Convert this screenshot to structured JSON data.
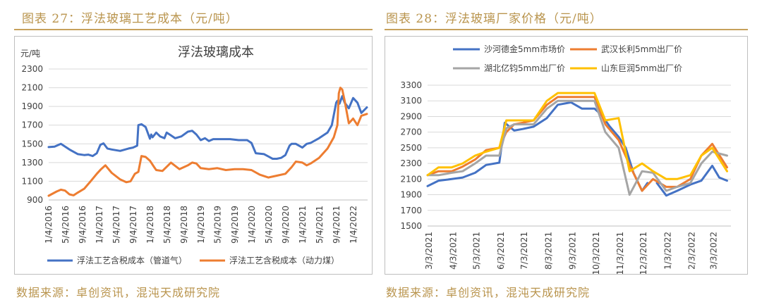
{
  "left": {
    "figure_title": "图表 27：浮法玻璃工艺成本（元/吨）",
    "source": "数据来源：卓创资讯，混沌天成研究院"
  },
  "right": {
    "figure_title": "图表 28：浮法玻璃厂家价格（元/吨）",
    "source": "数据来源：卓创资讯，混沌天成研究院"
  },
  "colors": {
    "gold": "#c6a15b",
    "blue": "#4472c4",
    "orange": "#ed7d31",
    "gray": "#a5a5a5",
    "yellow": "#ffc000"
  },
  "chart_data": [
    {
      "type": "line",
      "title": "浮法玻璃成本",
      "unit_label": "元/吨",
      "ylim": [
        900,
        2300
      ],
      "yticks": [
        900,
        1100,
        1300,
        1500,
        1700,
        1900,
        2100,
        2300
      ],
      "xlim": [
        "2016-01-04",
        "2022-04-15"
      ],
      "xticks": [
        "1/4/2016",
        "5/4/2016",
        "9/4/2016",
        "1/4/2017",
        "5/4/2017",
        "9/4/2017",
        "1/4/2018",
        "5/4/2018",
        "9/4/2018",
        "1/4/2019",
        "5/4/2019",
        "9/4/2019",
        "1/4/2020",
        "5/4/2020",
        "9/4/2020",
        "1/4/2021",
        "5/4/2021",
        "9/4/2021",
        "1/4/2022"
      ],
      "grid": true,
      "legend_position": "bottom",
      "series": [
        {
          "name": "浮法工艺含税成本（管道气）",
          "color": "#4472c4",
          "x": [
            "2016-01-04",
            "2016-02-15",
            "2016-04-01",
            "2016-06-01",
            "2016-08-01",
            "2016-09-15",
            "2016-10-15",
            "2016-11-15",
            "2016-12-15",
            "2017-01-10",
            "2017-02-01",
            "2017-03-01",
            "2017-04-01",
            "2017-06-01",
            "2017-08-01",
            "2017-09-01",
            "2017-10-01",
            "2017-10-10",
            "2017-11-01",
            "2017-12-01",
            "2018-01-01",
            "2018-01-10",
            "2018-01-20",
            "2018-02-15",
            "2018-03-15",
            "2018-04-15",
            "2018-05-01",
            "2018-06-01",
            "2018-07-01",
            "2018-08-15",
            "2018-10-01",
            "2018-11-01",
            "2018-12-01",
            "2019-01-01",
            "2019-02-01",
            "2019-03-01",
            "2019-04-01",
            "2019-05-01",
            "2019-06-01",
            "2019-08-01",
            "2019-10-01",
            "2019-12-01",
            "2020-01-01",
            "2020-02-01",
            "2020-04-01",
            "2020-06-01",
            "2020-07-01",
            "2020-08-01",
            "2020-09-01",
            "2020-10-01",
            "2020-10-15",
            "2020-11-15",
            "2021-01-01",
            "2021-02-01",
            "2021-03-01",
            "2021-05-01",
            "2021-07-01",
            "2021-08-01",
            "2021-09-01",
            "2021-09-10",
            "2021-09-25",
            "2021-10-15",
            "2021-11-01",
            "2021-12-01",
            "2022-01-01",
            "2022-02-01",
            "2022-03-01",
            "2022-04-10"
          ],
          "y": [
            1465,
            1470,
            1500,
            1440,
            1390,
            1380,
            1385,
            1370,
            1400,
            1490,
            1505,
            1450,
            1440,
            1425,
            1450,
            1460,
            1480,
            1700,
            1710,
            1680,
            1555,
            1600,
            1570,
            1620,
            1580,
            1560,
            1620,
            1590,
            1560,
            1580,
            1630,
            1640,
            1600,
            1540,
            1560,
            1530,
            1550,
            1550,
            1550,
            1550,
            1540,
            1540,
            1510,
            1400,
            1390,
            1340,
            1340,
            1350,
            1380,
            1480,
            1500,
            1500,
            1460,
            1500,
            1510,
            1560,
            1620,
            1700,
            1940,
            1960,
            1930,
            2010,
            1940,
            1880,
            1990,
            1940,
            1830,
            1890
          ]
        },
        {
          "name": "浮法工艺含税成本（动力煤）",
          "color": "#ed7d31",
          "x": [
            "2016-01-04",
            "2016-03-01",
            "2016-04-01",
            "2016-05-01",
            "2016-06-01",
            "2016-07-01",
            "2016-08-01",
            "2016-09-15",
            "2016-11-01",
            "2016-12-15",
            "2017-01-15",
            "2017-02-15",
            "2017-04-01",
            "2017-06-01",
            "2017-07-15",
            "2017-08-15",
            "2017-09-15",
            "2017-10-10",
            "2017-11-01",
            "2017-12-01",
            "2018-01-01",
            "2018-02-01",
            "2018-02-15",
            "2018-04-01",
            "2018-06-01",
            "2018-08-01",
            "2018-10-01",
            "2018-11-01",
            "2018-12-01",
            "2019-01-01",
            "2019-03-01",
            "2019-05-01",
            "2019-07-01",
            "2019-09-01",
            "2019-11-01",
            "2020-01-01",
            "2020-03-01",
            "2020-05-01",
            "2020-07-01",
            "2020-09-01",
            "2020-10-15",
            "2020-11-15",
            "2021-01-01",
            "2021-02-01",
            "2021-03-01",
            "2021-05-01",
            "2021-07-01",
            "2021-08-15",
            "2021-09-10",
            "2021-09-20",
            "2021-10-01",
            "2021-10-15",
            "2021-11-01",
            "2021-12-01",
            "2022-01-01",
            "2022-02-01",
            "2022-03-01",
            "2022-04-10"
          ],
          "y": [
            945,
            990,
            1010,
            1000,
            960,
            950,
            980,
            1020,
            1100,
            1180,
            1230,
            1270,
            1190,
            1120,
            1090,
            1100,
            1180,
            1200,
            1370,
            1360,
            1320,
            1250,
            1220,
            1210,
            1300,
            1230,
            1270,
            1300,
            1290,
            1240,
            1230,
            1240,
            1220,
            1230,
            1230,
            1220,
            1170,
            1140,
            1160,
            1180,
            1250,
            1310,
            1300,
            1270,
            1290,
            1350,
            1450,
            1570,
            1700,
            2040,
            2100,
            2080,
            1960,
            1720,
            1770,
            1700,
            1800,
            1820
          ]
        }
      ]
    },
    {
      "type": "line",
      "title": "",
      "ylim": [
        1500,
        3300
      ],
      "yticks": [
        1500,
        1700,
        1900,
        2100,
        2300,
        2500,
        2700,
        2900,
        3100,
        3300
      ],
      "xlim": [
        "2021-03-01",
        "2022-03-25"
      ],
      "xticks": [
        "3/3/2021",
        "4/3/2021",
        "5/3/2021",
        "6/3/2021",
        "7/3/2021",
        "8/3/2021",
        "9/3/2021",
        "10/3/2021",
        "11/3/2021",
        "12/3/2021",
        "1/3/2022",
        "2/3/2022",
        "3/3/2022"
      ],
      "grid": true,
      "legend_position": "top",
      "series": [
        {
          "name": "沙河德金5mm市场价",
          "color": "#4472c4",
          "x": [
            "2021-03-01",
            "2021-03-15",
            "2021-04-01",
            "2021-04-15",
            "2021-05-01",
            "2021-05-15",
            "2021-06-01",
            "2021-06-08",
            "2021-06-20",
            "2021-07-01",
            "2021-07-15",
            "2021-08-01",
            "2021-08-15",
            "2021-09-01",
            "2021-09-15",
            "2021-10-01",
            "2021-10-10",
            "2021-10-20",
            "2021-11-01",
            "2021-11-10",
            "2021-11-20",
            "2021-12-01",
            "2021-12-08"
          ],
          "y": [
            2010,
            2080,
            2100,
            2120,
            2180,
            2280,
            2310,
            2820,
            2720,
            2740,
            2770,
            2880,
            3050,
            3080,
            3000,
            3000,
            2920,
            2780,
            2640,
            2500,
            2180,
            1950,
            2050
          ]
        },
        {
          "name": "沙河德金5mm市场价",
          "color": "#4472c4",
          "x": [
            "2021-12-20",
            "2022-01-01",
            "2022-01-15",
            "2022-02-01",
            "2022-02-15",
            "2022-03-01",
            "2022-03-10",
            "2022-03-20"
          ],
          "y": [
            2050,
            1890,
            1950,
            2030,
            2080,
            2270,
            2120,
            2080
          ]
        },
        {
          "name": "武汉长利5mm出厂价",
          "color": "#ed7d31",
          "x": [
            "2021-03-01",
            "2021-03-15",
            "2021-04-01",
            "2021-04-15",
            "2021-05-01",
            "2021-05-15",
            "2021-06-01",
            "2021-06-10",
            "2021-06-20",
            "2021-07-01",
            "2021-07-15",
            "2021-08-01",
            "2021-08-15",
            "2021-09-01",
            "2021-09-15",
            "2021-10-01",
            "2021-10-15",
            "2021-11-01",
            "2021-11-15",
            "2021-12-01",
            "2021-12-15",
            "2022-01-01",
            "2022-01-15",
            "2022-02-01",
            "2022-02-15",
            "2022-03-01",
            "2022-03-20"
          ],
          "y": [
            2150,
            2200,
            2200,
            2260,
            2350,
            2470,
            2500,
            2700,
            2800,
            2820,
            2850,
            3050,
            3150,
            3150,
            3150,
            3150,
            2800,
            2600,
            2280,
            1950,
            2100,
            2000,
            2000,
            2100,
            2400,
            2550,
            2250
          ]
        },
        {
          "name": "湖北亿钧5mm出厂价",
          "color": "#a5a5a5",
          "x": [
            "2021-03-01",
            "2021-03-15",
            "2021-04-01",
            "2021-04-15",
            "2021-05-01",
            "2021-05-15",
            "2021-06-01",
            "2021-06-10",
            "2021-06-20",
            "2021-07-01",
            "2021-07-15",
            "2021-08-01",
            "2021-08-15",
            "2021-09-01",
            "2021-09-15",
            "2021-10-01",
            "2021-10-15",
            "2021-11-01",
            "2021-11-15",
            "2021-12-01",
            "2021-12-15",
            "2022-01-01",
            "2022-01-15",
            "2022-02-01",
            "2022-02-15",
            "2022-03-01",
            "2022-03-20"
          ],
          "y": [
            2150,
            2150,
            2180,
            2200,
            2300,
            2400,
            2400,
            2750,
            2800,
            2800,
            2800,
            3000,
            3100,
            3100,
            3100,
            3100,
            2700,
            2500,
            1900,
            2200,
            2180,
            1950,
            2000,
            2050,
            2300,
            2450,
            2400
          ]
        },
        {
          "name": "山东巨润5mm出厂价",
          "color": "#ffc000",
          "x": [
            "2021-03-01",
            "2021-03-15",
            "2021-04-01",
            "2021-04-15",
            "2021-05-01",
            "2021-05-15",
            "2021-06-01",
            "2021-06-10",
            "2021-06-20",
            "2021-07-01",
            "2021-07-15",
            "2021-08-01",
            "2021-08-15",
            "2021-09-01",
            "2021-09-15",
            "2021-10-01",
            "2021-10-15",
            "2021-11-01",
            "2021-11-15",
            "2021-12-01",
            "2021-12-15",
            "2022-01-01",
            "2022-01-15",
            "2022-02-01",
            "2022-02-15",
            "2022-03-01",
            "2022-03-20"
          ],
          "y": [
            2150,
            2250,
            2250,
            2300,
            2400,
            2450,
            2500,
            2850,
            2850,
            2850,
            2850,
            3100,
            3200,
            3200,
            3200,
            3200,
            2850,
            2880,
            2200,
            2300,
            2200,
            2100,
            2100,
            2150,
            2400,
            2500,
            2200
          ]
        }
      ]
    }
  ]
}
